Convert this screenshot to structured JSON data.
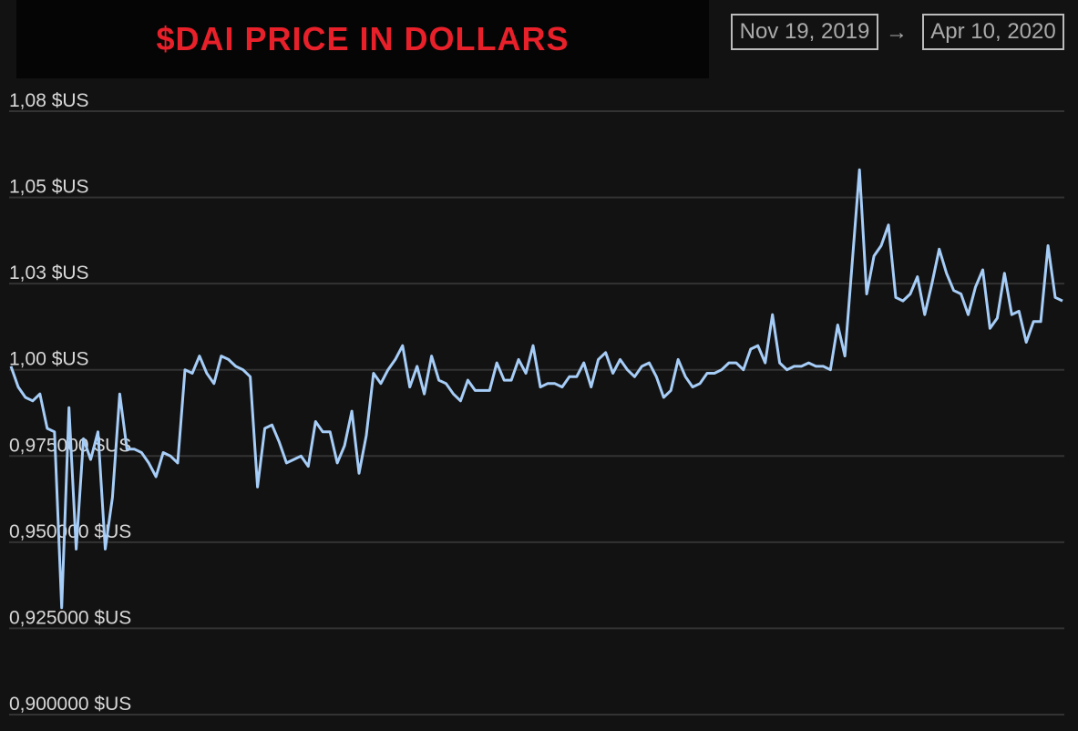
{
  "chart_data": {
    "type": "line",
    "title": "$DAI PRICE IN DOLLARS",
    "date_range": {
      "start": "Nov 19, 2019",
      "separator": "→",
      "end": "Apr 10, 2020"
    },
    "series": [
      {
        "name": "DAI",
        "color": "#a6cdf7",
        "values": [
          1.001,
          0.995,
          0.992,
          0.991,
          0.993,
          0.983,
          0.982,
          0.931,
          0.989,
          0.948,
          0.98,
          0.974,
          0.982,
          0.948,
          0.963,
          0.993,
          0.977,
          0.977,
          0.976,
          0.973,
          0.969,
          0.976,
          0.975,
          0.973,
          1.0,
          0.999,
          1.004,
          0.999,
          0.996,
          1.004,
          1.003,
          1.001,
          1.0,
          0.998,
          0.966,
          0.983,
          0.984,
          0.979,
          0.973,
          0.974,
          0.975,
          0.972,
          0.985,
          0.982,
          0.982,
          0.973,
          0.978,
          0.988,
          0.97,
          0.981,
          0.999,
          0.996,
          1.0,
          1.003,
          1.007,
          0.995,
          1.001,
          0.993,
          1.004,
          0.997,
          0.996,
          0.993,
          0.991,
          0.997,
          0.994,
          0.994,
          0.994,
          1.002,
          0.997,
          0.997,
          1.003,
          0.999,
          1.007,
          0.995,
          0.996,
          0.996,
          0.995,
          0.998,
          0.998,
          1.002,
          0.995,
          1.003,
          1.005,
          0.999,
          1.003,
          1.0,
          0.998,
          1.001,
          1.002,
          0.998,
          0.992,
          0.994,
          1.003,
          0.998,
          0.995,
          0.996,
          0.999,
          0.999,
          1.0,
          1.002,
          1.002,
          1.0,
          1.006,
          1.007,
          1.002,
          1.016,
          1.002,
          1.0,
          1.001,
          1.001,
          1.002,
          1.001,
          1.001,
          1.0,
          1.013,
          1.004,
          1.031,
          1.058,
          1.022,
          1.033,
          1.036,
          1.042,
          1.021,
          1.02,
          1.022,
          1.027,
          1.016,
          1.025,
          1.035,
          1.028,
          1.023,
          1.022,
          1.016,
          1.024,
          1.029,
          1.012,
          1.015,
          1.028,
          1.016,
          1.017,
          1.008,
          1.014,
          1.014,
          1.036,
          1.021,
          1.02
        ]
      }
    ],
    "ylim": [
      0.9,
      1.075
    ],
    "yticks": [
      {
        "value": 0.9,
        "label": "0,900000 $US"
      },
      {
        "value": 0.925,
        "label": "0,925000 $US"
      },
      {
        "value": 0.95,
        "label": "0,950000 $US"
      },
      {
        "value": 0.975,
        "label": "0,975000 $US"
      },
      {
        "value": 1.0,
        "label": "1,00 $US"
      },
      {
        "value": 1.025,
        "label": "1,03 $US"
      },
      {
        "value": 1.05,
        "label": "1,05 $US"
      },
      {
        "value": 1.075,
        "label": "1,08 $US"
      }
    ],
    "grid": true
  }
}
